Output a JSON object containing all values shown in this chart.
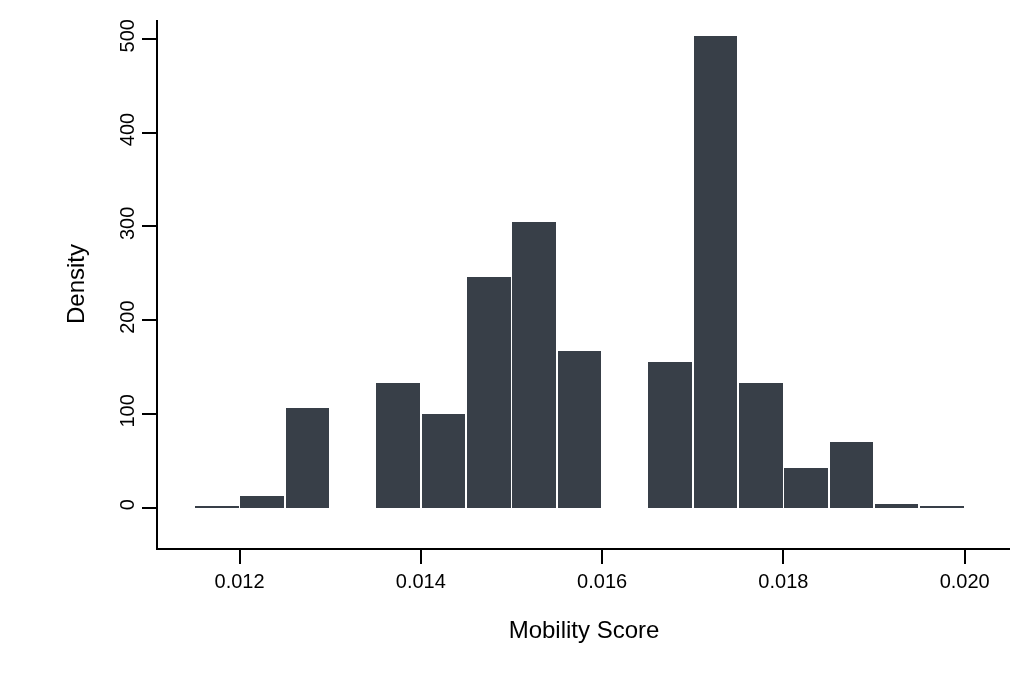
{
  "chart_data": {
    "type": "histogram",
    "xlabel": "Mobility Score",
    "ylabel": "Density",
    "bins": [
      0.0115,
      0.012,
      0.0125,
      0.013,
      0.0135,
      0.014,
      0.0145,
      0.015,
      0.0155,
      0.016,
      0.0165,
      0.017,
      0.0175,
      0.018,
      0.0185,
      0.019,
      0.0195,
      0.02
    ],
    "values": [
      1,
      12,
      106,
      0,
      133,
      100,
      246,
      305,
      167,
      0,
      155,
      503,
      133,
      42,
      70,
      4,
      1
    ],
    "color": "#383f48",
    "xlim": [
      0.0111,
      0.0205
    ],
    "xticks": [
      {
        "value": 0.012,
        "label": "0.012"
      },
      {
        "value": 0.014,
        "label": "0.014"
      },
      {
        "value": 0.016,
        "label": "0.016"
      },
      {
        "value": 0.018,
        "label": "0.018"
      },
      {
        "value": 0.02,
        "label": "0.020"
      }
    ],
    "ylim": [
      -43,
      520
    ],
    "yticks": [
      0,
      100,
      200,
      300,
      400,
      500
    ]
  }
}
